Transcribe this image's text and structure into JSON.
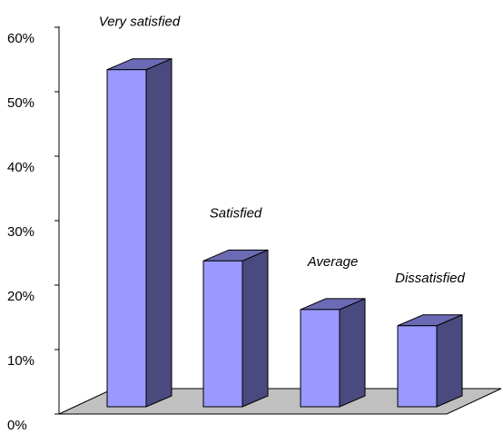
{
  "chart_data": {
    "type": "bar",
    "categories": [
      "Very satisfied",
      "Satisfied",
      "Average",
      "Dissatisfied"
    ],
    "values": [
      52,
      22.5,
      15,
      12.5
    ],
    "ylim": [
      0,
      60
    ],
    "yticks": [
      0,
      10,
      20,
      30,
      40,
      50,
      60
    ],
    "ytick_labels": [
      "0%",
      "10%",
      "20%",
      "30%",
      "40%",
      "50%",
      "60%"
    ],
    "grid": false,
    "legend": "none",
    "three_d": true,
    "colors": {
      "bar_front": "#9999ff",
      "bar_side": "#4a4a7f",
      "bar_top": "#6b6bb5",
      "floor": "#c0c0c0",
      "outline": "#000000"
    }
  }
}
